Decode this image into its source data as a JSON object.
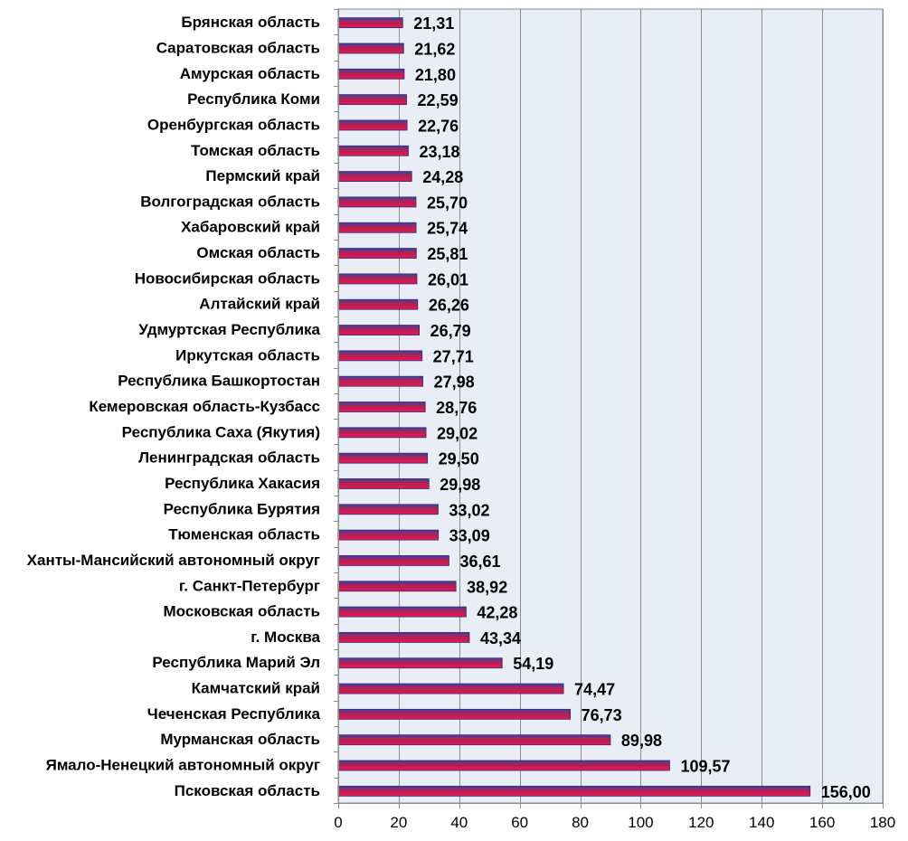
{
  "chart_data": {
    "type": "bar",
    "orientation": "horizontal",
    "categories": [
      "Брянская область",
      "Саратовская область",
      "Амурская область",
      "Республика Коми",
      "Оренбургская область",
      "Томская область",
      "Пермский край",
      "Волгоградская область",
      "Хабаровский край",
      "Омская область",
      "Новосибирская область",
      "Алтайский край",
      "Удмуртская Республика",
      "Иркутская область",
      "Республика Башкортостан",
      "Кемеровская область-Кузбасс",
      "Республика Саха (Якутия)",
      "Ленинградская область",
      "Республика Хакасия",
      "Республика Бурятия",
      "Тюменская область",
      "Ханты-Мансийский автономный округ",
      "г. Санкт-Петербург",
      "Московская область",
      "г. Москва",
      "Республика Марий Эл",
      "Камчатский край",
      "Чеченская Республика",
      "Мурманская область",
      "Ямало-Ненецкий автономный округ",
      "Псковская область"
    ],
    "values": [
      21.31,
      21.62,
      21.8,
      22.59,
      22.76,
      23.18,
      24.28,
      25.7,
      25.74,
      25.81,
      26.01,
      26.26,
      26.79,
      27.71,
      27.98,
      28.76,
      29.02,
      29.5,
      29.98,
      33.02,
      33.09,
      36.61,
      38.92,
      42.28,
      43.34,
      54.19,
      74.47,
      76.73,
      89.98,
      109.57,
      156.0
    ],
    "value_labels": [
      "21,31",
      "21,62",
      "21,80",
      "22,59",
      "22,76",
      "23,18",
      "24,28",
      "25,70",
      "25,74",
      "25,81",
      "26,01",
      "26,26",
      "26,79",
      "27,71",
      "27,98",
      "28,76",
      "29,02",
      "29,50",
      "29,98",
      "33,02",
      "33,09",
      "36,61",
      "38,92",
      "42,28",
      "43,34",
      "54,19",
      "74,47",
      "76,73",
      "89,98",
      "109,57",
      "156,00"
    ],
    "x_ticks": [
      "0",
      "20",
      "40",
      "60",
      "80",
      "100",
      "120",
      "140",
      "160",
      "180"
    ],
    "xlim": [
      0,
      180
    ],
    "title": "",
    "xlabel": "",
    "ylabel": "",
    "grid": "vertical",
    "legend": "none",
    "colors": {
      "plot_background": "#e8edf6",
      "gridline": "#8c8c8c",
      "axis": "#8c8c8c",
      "bar_top": "#3b3fa6",
      "bar_mid": "#b8204f",
      "bar_bottom": "#f0145a",
      "bar_edge": "#2d2d7a"
    }
  }
}
